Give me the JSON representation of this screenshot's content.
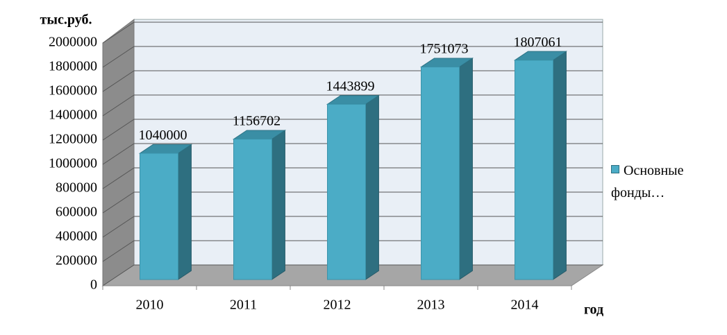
{
  "chart_data": {
    "type": "bar3d",
    "y_label": "тыс.руб.",
    "x_label": "год",
    "categories": [
      "2010",
      "2011",
      "2012",
      "2013",
      "2014"
    ],
    "series": [
      {
        "name": "Основные фонды…",
        "color": "#4bacc6",
        "values": [
          1040000,
          1156702,
          1443899,
          1751073,
          1807061
        ]
      }
    ],
    "ylim": [
      0,
      2000000
    ],
    "yticks": [
      0,
      200000,
      400000,
      600000,
      800000,
      1000000,
      1200000,
      1400000,
      1600000,
      1800000,
      2000000
    ],
    "grid": true,
    "legend": "right"
  }
}
